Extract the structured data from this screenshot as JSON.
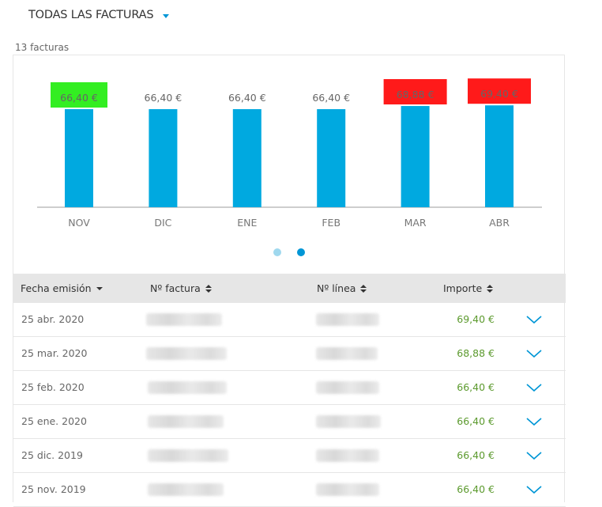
{
  "filter": {
    "label": "TODAS LAS FACTURAS"
  },
  "summary": {
    "count_text": "13 facturas"
  },
  "chart_data": {
    "type": "bar",
    "categories": [
      "NOV",
      "DIC",
      "ENE",
      "FEB",
      "MAR",
      "ABR"
    ],
    "values": [
      66.4,
      66.4,
      66.4,
      66.4,
      68.88,
      69.4
    ],
    "value_labels": [
      "66,40 €",
      "66,40 €",
      "66,40 €",
      "66,40 €",
      "68,88 €",
      "69,40 €"
    ],
    "label_highlights": [
      "#33ee22",
      "",
      "",
      "",
      "#ff1a1a",
      "#ff1a1a"
    ],
    "bar_color": "#00a9e0",
    "title": "",
    "xlabel": "",
    "ylabel": "",
    "grid": false
  },
  "pager": {
    "active_index": 1,
    "colors": {
      "inactive": "#9fd8ee",
      "active": "#0096d6"
    }
  },
  "table": {
    "headers": {
      "date": "Fecha emisión",
      "invoice": "Nº factura",
      "line": "Nº línea",
      "amount": "Importe"
    },
    "rows": [
      {
        "date": "25 abr. 2020",
        "amount": "69,40 €"
      },
      {
        "date": "25 mar. 2020",
        "amount": "68,88 €"
      },
      {
        "date": "25 feb. 2020",
        "amount": "66,40 €"
      },
      {
        "date": "25 ene. 2020",
        "amount": "66,40 €"
      },
      {
        "date": "25 dic. 2019",
        "amount": "66,40 €"
      },
      {
        "date": "25 nov. 2019",
        "amount": "66,40 €"
      }
    ],
    "amount_color": "#5c9a2e",
    "expand_icon": "chevron-down-icon"
  }
}
